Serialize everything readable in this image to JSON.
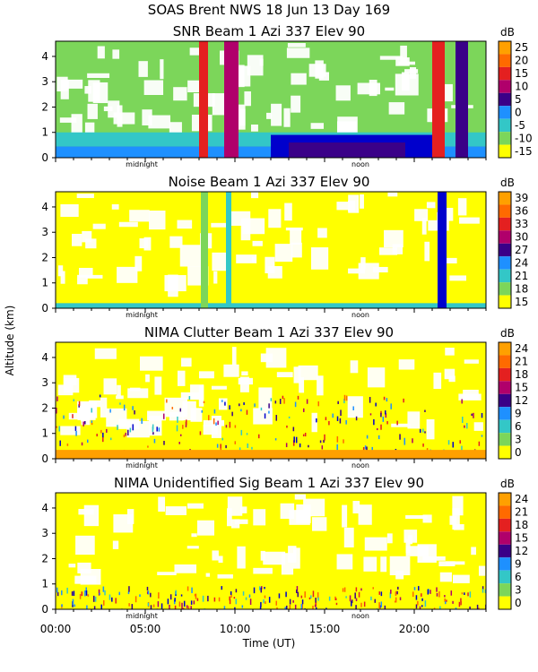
{
  "header": {
    "title": "SOAS Brent NWS  18 Jun 13 Day 169"
  },
  "axes": {
    "y_label": "Altitude (km)",
    "x_label": "Time (UT)",
    "x_ticks": [
      "00:00",
      "05:00",
      "10:00",
      "15:00",
      "20:00"
    ],
    "x_tick_hours": [
      0,
      5,
      10,
      15,
      20
    ],
    "midnight_label": "midnight",
    "noon_label": "noon",
    "colorbar_unit": "dB"
  },
  "colors": {
    "scale": [
      "#ffff00",
      "#7cd65a",
      "#33c7c7",
      "#1e90ff",
      "#0000cc",
      "#3a0088",
      "#b0006b",
      "#e42020",
      "#ff6a00",
      "#ffa000"
    ]
  },
  "chart_data": [
    {
      "type": "heatmap",
      "title": "SNR Beam 1 Azi 337 Elev 90",
      "xlabel": "Time (UT)",
      "ylabel": "Altitude (km)",
      "xlim": [
        0,
        24
      ],
      "ylim": [
        0,
        4.6
      ],
      "yticks": [
        0,
        1,
        2,
        3,
        4
      ],
      "colorbar": {
        "unit": "dB",
        "ticks": [
          25,
          20,
          15,
          10,
          5,
          0,
          -5,
          -10,
          -15
        ]
      },
      "background_level": 1,
      "layers": [
        {
          "t0": 0.0,
          "t1": 24.0,
          "h0": 0.0,
          "h1": 0.45,
          "level": 3
        },
        {
          "t0": 0.0,
          "t1": 24.0,
          "h0": 0.45,
          "h1": 1.0,
          "level": 2
        },
        {
          "t0": 12.0,
          "t1": 21.0,
          "h0": 0.0,
          "h1": 0.9,
          "level": 4
        },
        {
          "t0": 13.0,
          "t1": 19.5,
          "h0": 0.0,
          "h1": 0.6,
          "level": 5
        }
      ],
      "stripes": [
        {
          "t0": 8.0,
          "t1": 8.5,
          "h0": 0.0,
          "h1": 4.6,
          "level": 7
        },
        {
          "t0": 9.4,
          "t1": 10.2,
          "h0": 0.0,
          "h1": 4.6,
          "level": 6
        },
        {
          "t0": 21.0,
          "t1": 21.7,
          "h0": 0.0,
          "h1": 4.6,
          "level": 7
        },
        {
          "t0": 22.3,
          "t1": 23.0,
          "h0": 0.0,
          "h1": 4.6,
          "level": 5
        }
      ]
    },
    {
      "type": "heatmap",
      "title": "Noise Beam 1 Azi 337 Elev 90",
      "xlabel": "Time (UT)",
      "ylabel": "Altitude (km)",
      "xlim": [
        0,
        24
      ],
      "ylim": [
        0,
        4.6
      ],
      "yticks": [
        0,
        1,
        2,
        3,
        4
      ],
      "colorbar": {
        "unit": "dB",
        "ticks": [
          39,
          36,
          33,
          30,
          27,
          24,
          21,
          18,
          15
        ]
      },
      "background_level": 0,
      "layers": [
        {
          "t0": 0.0,
          "t1": 24.0,
          "h0": 0.0,
          "h1": 0.2,
          "level": 2
        }
      ],
      "stripes": [
        {
          "t0": 8.1,
          "t1": 8.5,
          "h0": 0.0,
          "h1": 4.6,
          "level": 1
        },
        {
          "t0": 9.5,
          "t1": 9.8,
          "h0": 0.0,
          "h1": 4.6,
          "level": 2
        },
        {
          "t0": 21.3,
          "t1": 21.8,
          "h0": 0.0,
          "h1": 4.6,
          "level": 4
        }
      ]
    },
    {
      "type": "heatmap",
      "title": "NIMA Clutter Beam 1 Azi 337 Elev 90",
      "xlabel": "Time (UT)",
      "ylabel": "Altitude (km)",
      "xlim": [
        0,
        24
      ],
      "ylim": [
        0,
        4.6
      ],
      "yticks": [
        0,
        1,
        2,
        3,
        4
      ],
      "colorbar": {
        "unit": "dB",
        "ticks": [
          24,
          21,
          18,
          15,
          12,
          9,
          6,
          3,
          0
        ]
      },
      "background_level": 0,
      "layers": [
        {
          "t0": 0.0,
          "t1": 24.0,
          "h0": 0.0,
          "h1": 0.35,
          "level": 9
        }
      ],
      "stripes": []
    },
    {
      "type": "heatmap",
      "title": "NIMA Unidentified Sig Beam 1 Azi 337 Elev 90",
      "xlabel": "Time (UT)",
      "ylabel": "Altitude (km)",
      "xlim": [
        0,
        24
      ],
      "ylim": [
        0,
        4.6
      ],
      "yticks": [
        0,
        1,
        2,
        3,
        4
      ],
      "colorbar": {
        "unit": "dB",
        "ticks": [
          24,
          21,
          18,
          15,
          12,
          9,
          6,
          3,
          0
        ]
      },
      "background_level": 0,
      "layers": [],
      "stripes": []
    }
  ]
}
